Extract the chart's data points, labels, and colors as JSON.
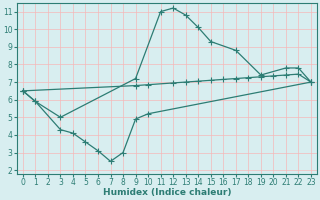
{
  "line1_x": [
    0,
    1,
    3,
    9,
    11,
    12,
    13,
    14,
    15,
    17,
    19,
    21,
    22,
    23
  ],
  "line1_y": [
    6.5,
    5.9,
    5.0,
    7.2,
    11.0,
    11.2,
    10.8,
    10.1,
    9.3,
    8.8,
    7.4,
    7.8,
    7.8,
    7.0
  ],
  "line2_x": [
    0,
    1,
    3,
    4,
    5,
    6,
    7,
    8,
    9,
    10,
    23
  ],
  "line2_y": [
    6.5,
    5.9,
    4.3,
    4.1,
    3.6,
    3.1,
    2.5,
    3.0,
    4.9,
    5.2,
    7.0
  ],
  "line3_x": [
    0,
    9,
    10,
    12,
    13,
    14,
    15,
    16,
    17,
    18,
    19,
    20,
    21,
    22,
    23
  ],
  "line3_y": [
    6.5,
    6.8,
    6.85,
    6.95,
    7.0,
    7.05,
    7.1,
    7.15,
    7.2,
    7.25,
    7.3,
    7.35,
    7.4,
    7.45,
    7.0
  ],
  "color": "#2d7d74",
  "bg_color": "#d8eef0",
  "grid_color": "#f5b8b8",
  "xlabel": "Humidex (Indice chaleur)",
  "xlim": [
    -0.5,
    23.5
  ],
  "ylim": [
    1.8,
    11.5
  ],
  "yticks": [
    2,
    3,
    4,
    5,
    6,
    7,
    8,
    9,
    10,
    11
  ],
  "xticks": [
    0,
    1,
    2,
    3,
    4,
    5,
    6,
    7,
    8,
    9,
    10,
    11,
    12,
    13,
    14,
    15,
    16,
    17,
    18,
    19,
    20,
    21,
    22,
    23
  ],
  "tick_fontsize": 5.5,
  "xlabel_fontsize": 6.5,
  "marker": "+",
  "markersize": 4,
  "linewidth": 0.9
}
